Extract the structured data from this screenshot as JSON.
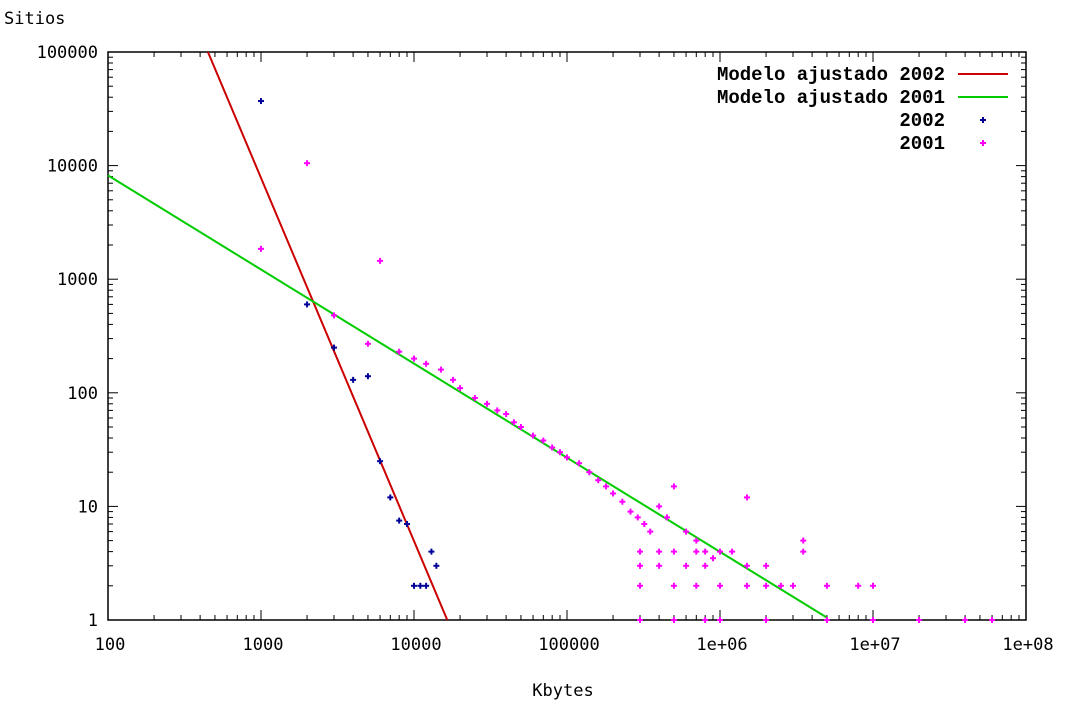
{
  "chart_data": {
    "type": "scatter",
    "xlabel": "Kbytes",
    "ylabel": "Sitios",
    "x_scale": "log",
    "y_scale": "log",
    "xlim": [
      100,
      100000000
    ],
    "ylim": [
      1,
      100000
    ],
    "x_tick_labels": [
      "100",
      "1000",
      "10000",
      "100000",
      "1e+06",
      "1e+07",
      "1e+08"
    ],
    "y_tick_labels": [
      "1",
      "10",
      "100",
      "1000",
      "10000",
      "100000"
    ],
    "grid": false,
    "legend_position": "top-right",
    "series": [
      {
        "name": "Modelo ajustado 2002",
        "kind": "line",
        "color": "#cc0000",
        "points": [
          [
            450,
            100000
          ],
          [
            16500,
            1
          ]
        ]
      },
      {
        "name": "Modelo ajustado 2001",
        "kind": "line",
        "color": "#00cc00",
        "points": [
          [
            100,
            8200
          ],
          [
            5000000,
            1.05
          ]
        ]
      },
      {
        "name": "2002",
        "kind": "points",
        "color": "#000099",
        "points": [
          [
            1000,
            37000
          ],
          [
            2000,
            600
          ],
          [
            3000,
            250
          ],
          [
            4000,
            130
          ],
          [
            5000,
            140
          ],
          [
            6000,
            25
          ],
          [
            7000,
            12
          ],
          [
            8000,
            7.5
          ],
          [
            9000,
            7
          ],
          [
            10000,
            2
          ],
          [
            11000,
            2
          ],
          [
            12000,
            2
          ],
          [
            13000,
            4
          ],
          [
            14000,
            3
          ]
        ]
      },
      {
        "name": "2001",
        "kind": "points",
        "color": "#ff00ff",
        "points": [
          [
            1000,
            1850
          ],
          [
            2000,
            10500
          ],
          [
            3000,
            480
          ],
          [
            5000,
            270
          ],
          [
            6000,
            1450
          ],
          [
            8000,
            230
          ],
          [
            10000,
            200
          ],
          [
            12000,
            180
          ],
          [
            15000,
            160
          ],
          [
            18000,
            130
          ],
          [
            20000,
            110
          ],
          [
            25000,
            90
          ],
          [
            30000,
            80
          ],
          [
            35000,
            70
          ],
          [
            40000,
            65
          ],
          [
            45000,
            55
          ],
          [
            50000,
            50
          ],
          [
            60000,
            42
          ],
          [
            70000,
            38
          ],
          [
            80000,
            33
          ],
          [
            90000,
            30
          ],
          [
            100000,
            27
          ],
          [
            120000,
            24
          ],
          [
            140000,
            20
          ],
          [
            160000,
            17
          ],
          [
            180000,
            15
          ],
          [
            200000,
            13
          ],
          [
            230000,
            11
          ],
          [
            260000,
            9
          ],
          [
            290000,
            8
          ],
          [
            320000,
            7
          ],
          [
            350000,
            6
          ],
          [
            400000,
            10
          ],
          [
            450000,
            8
          ],
          [
            500000,
            15
          ],
          [
            600000,
            6
          ],
          [
            700000,
            5
          ],
          [
            800000,
            4
          ],
          [
            900000,
            3.5
          ],
          [
            1500000,
            12
          ],
          [
            3500000,
            5
          ],
          [
            3500000,
            4
          ],
          [
            5000000,
            2
          ],
          [
            8000000,
            2
          ],
          [
            10000000,
            2
          ],
          [
            300000,
            4
          ],
          [
            400000,
            4
          ],
          [
            500000,
            4
          ],
          [
            700000,
            4
          ],
          [
            1000000,
            4
          ],
          [
            1200000,
            4
          ],
          [
            1500000,
            3
          ],
          [
            2000000,
            3
          ],
          [
            300000,
            3
          ],
          [
            400000,
            3
          ],
          [
            600000,
            3
          ],
          [
            800000,
            3
          ],
          [
            300000,
            2
          ],
          [
            500000,
            2
          ],
          [
            700000,
            2
          ],
          [
            1000000,
            2
          ],
          [
            1500000,
            2
          ],
          [
            2000000,
            2
          ],
          [
            2500000,
            2
          ],
          [
            3000000,
            2
          ],
          [
            300000,
            1
          ],
          [
            500000,
            1
          ],
          [
            800000,
            1
          ],
          [
            1000000,
            1
          ],
          [
            2000000,
            1
          ],
          [
            5000000,
            1
          ],
          [
            10000000,
            1
          ],
          [
            20000000,
            1
          ],
          [
            40000000,
            1
          ],
          [
            60000000,
            1
          ]
        ]
      }
    ]
  }
}
